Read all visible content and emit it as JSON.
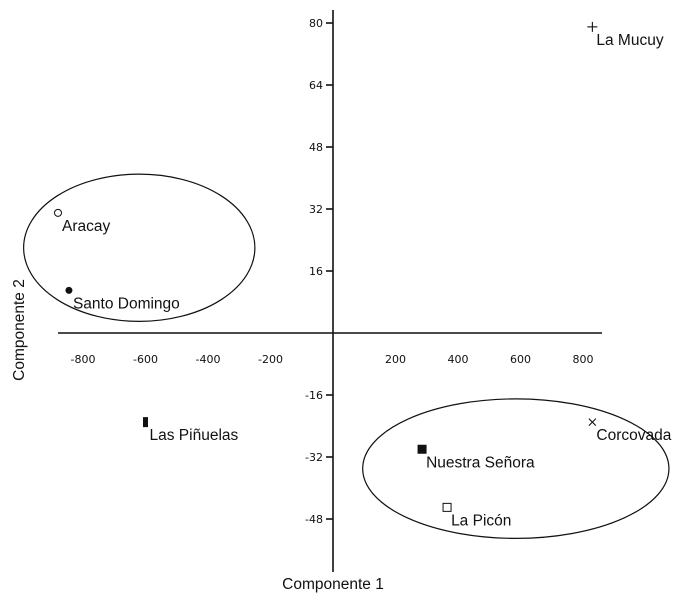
{
  "chart_data": {
    "type": "scatter",
    "xlabel": "Componente 1",
    "ylabel": "Componente 2",
    "xlim": [
      -900,
      900
    ],
    "ylim": [
      -55,
      80
    ],
    "x_ticks": [
      -800,
      -600,
      -400,
      -200,
      200,
      400,
      600,
      800
    ],
    "y_ticks": [
      80,
      64,
      48,
      32,
      16,
      -16,
      -32,
      -48
    ],
    "points": [
      {
        "label": "La Mucuy",
        "x": 830,
        "y": 79,
        "marker": "plus"
      },
      {
        "label": "Aracay",
        "x": -880,
        "y": 31,
        "marker": "open-circle"
      },
      {
        "label": "Santo Domingo",
        "x": -845,
        "y": 11,
        "marker": "filled-circle"
      },
      {
        "label": "Las Piñuelas",
        "x": -600,
        "y": -23,
        "marker": "filled-narrow-square"
      },
      {
        "label": "Corcovada",
        "x": 830,
        "y": -23,
        "marker": "x"
      },
      {
        "label": "Nuestra Señora",
        "x": 285,
        "y": -30,
        "marker": "filled-square"
      },
      {
        "label": "La Picón",
        "x": 365,
        "y": -45,
        "marker": "open-square"
      }
    ],
    "clusters": [
      {
        "members": [
          "Aracay",
          "Santo Domingo"
        ],
        "center": [
          -620,
          22
        ],
        "radius": [
          740,
          19
        ]
      },
      {
        "members": [
          "Corcovada",
          "Nuestra Señora",
          "La Picón"
        ],
        "center": [
          585,
          -35
        ],
        "radius": [
          980,
          18
        ]
      }
    ],
    "grid": false,
    "legend": "none"
  }
}
